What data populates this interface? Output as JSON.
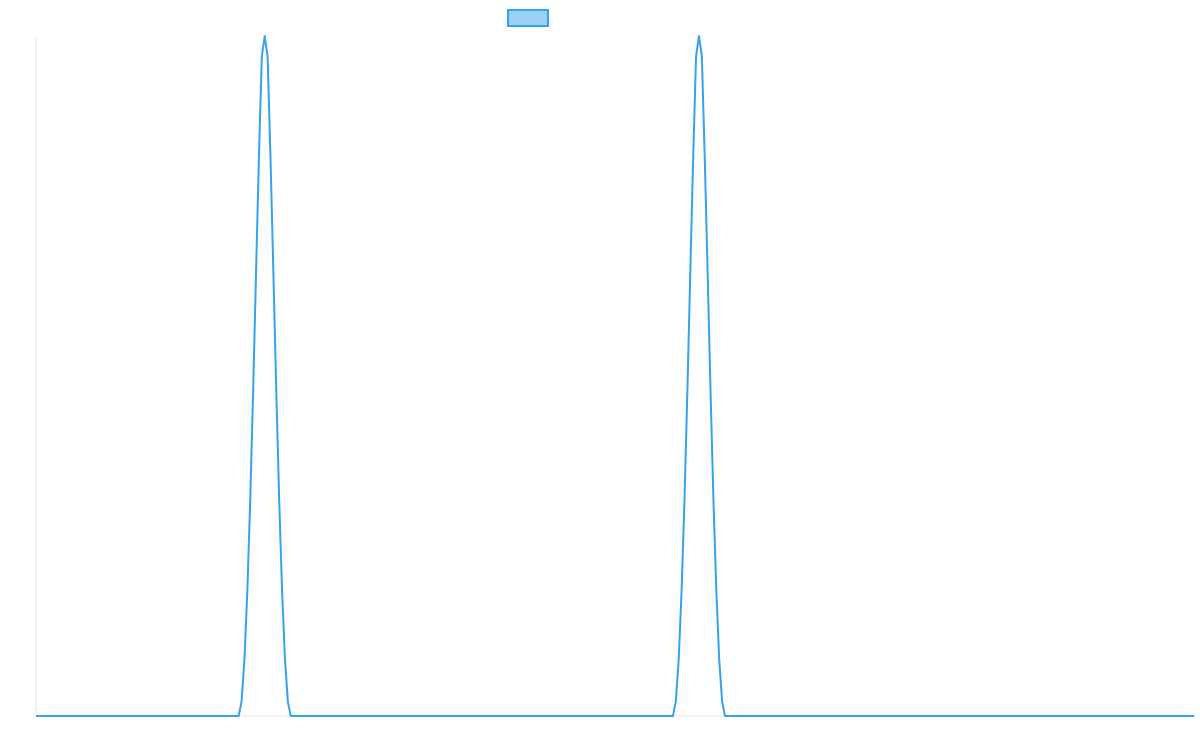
{
  "chart_data": {
    "type": "line",
    "title": "",
    "xlabel": "",
    "ylabel": "",
    "grid": false,
    "legend": {
      "placement": "top-center",
      "entries": [
        {
          "label": "",
          "fill_color": "#9ad0f5",
          "border_color": "#36a2eb"
        }
      ]
    },
    "xlim": [
      0,
      1000
    ],
    "ylim": [
      0,
      1
    ],
    "series": [
      {
        "color": "#36a2eb",
        "x": [
          0,
          175,
          177.5,
          180,
          182.5,
          185,
          187.5,
          190,
          192.5,
          195,
          197.5,
          200,
          202.5,
          205,
          207.5,
          210,
          212.5,
          215,
          217.5,
          220,
          222.5,
          225,
          1000
        ],
        "y": [
          0,
          0,
          0.021,
          0.083,
          0.184,
          0.318,
          0.478,
          0.651,
          0.821,
          0.97,
          1.0,
          0.97,
          0.821,
          0.651,
          0.478,
          0.318,
          0.184,
          0.083,
          0.021,
          0,
          0,
          0,
          0
        ],
        "peaks": [
          197.5
        ]
      }
    ]
  }
}
